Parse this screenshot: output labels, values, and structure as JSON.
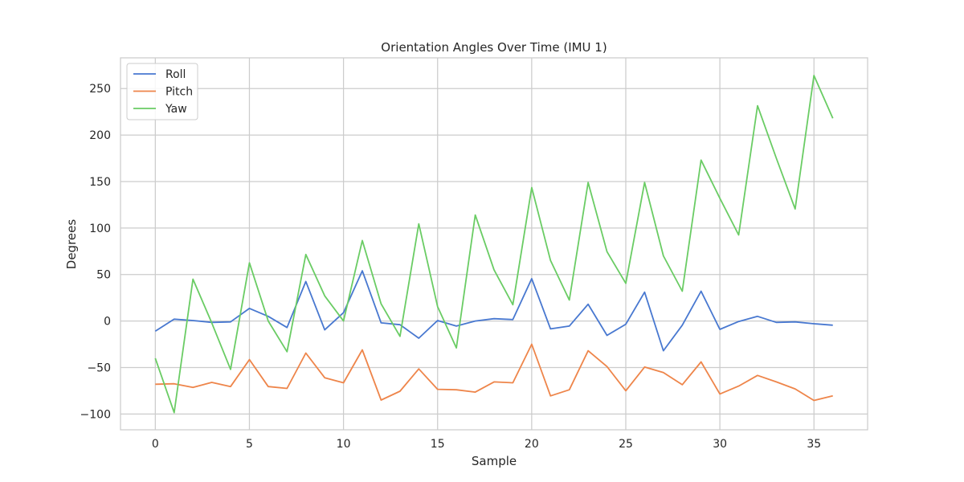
{
  "chart_data": {
    "type": "line",
    "title": "Orientation Angles Over Time (IMU 1)",
    "xlabel": "Sample",
    "ylabel": "Degrees",
    "xlim": [
      -1.85,
      37.85
    ],
    "ylim": [
      -117,
      283
    ],
    "xticks": [
      0,
      5,
      10,
      15,
      20,
      25,
      30,
      35
    ],
    "yticks": [
      -100,
      -50,
      0,
      50,
      100,
      150,
      200,
      250
    ],
    "grid": true,
    "legend_position": "top-left",
    "x": [
      0,
      1,
      2,
      3,
      4,
      5,
      6,
      7,
      8,
      9,
      10,
      11,
      12,
      13,
      14,
      15,
      16,
      17,
      18,
      19,
      20,
      21,
      22,
      23,
      24,
      25,
      26,
      27,
      28,
      29,
      30,
      31,
      32,
      33,
      34,
      35,
      36
    ],
    "series": [
      {
        "name": "Roll",
        "color": "#4878d0",
        "values": [
          -11,
          2,
          0.5,
          -1.5,
          -1,
          13.5,
          5,
          -7,
          42.5,
          -9.5,
          9,
          54,
          -2,
          -4,
          -18.5,
          0.5,
          -5.5,
          0,
          2.5,
          1.5,
          45.5,
          -8.5,
          -5.5,
          18,
          -15.5,
          -3.5,
          31,
          -32,
          -4.5,
          32,
          -9,
          -0.5,
          5,
          -1.5,
          -1,
          -3,
          -4.5
        ]
      },
      {
        "name": "Pitch",
        "color": "#ee854a",
        "values": [
          -68,
          -67.5,
          -71.5,
          -66,
          -70.5,
          -41.5,
          -70.5,
          -72.5,
          -34.5,
          -61,
          -66.5,
          -31,
          -85,
          -75.5,
          -51.5,
          -73.5,
          -74,
          -76.5,
          -65.5,
          -66.5,
          -25,
          -80.5,
          -74,
          -32,
          -49,
          -75,
          -49.5,
          -55.5,
          -68.5,
          -44,
          -78.5,
          -70,
          -58.5,
          -65.5,
          -73,
          -85.5,
          -80.5
        ]
      },
      {
        "name": "Yaw",
        "color": "#6acc64",
        "values": [
          -40,
          -98.5,
          45,
          -2,
          -52,
          62.5,
          0,
          -33,
          71.5,
          27,
          0,
          86.5,
          18.5,
          -16.5,
          104.5,
          15.5,
          -29,
          114,
          55,
          17.5,
          143.5,
          65,
          22.5,
          149,
          74.5,
          40.5,
          149,
          70,
          32,
          173,
          132,
          92.5,
          231.5,
          175,
          120.5,
          264,
          218
        ]
      }
    ]
  }
}
